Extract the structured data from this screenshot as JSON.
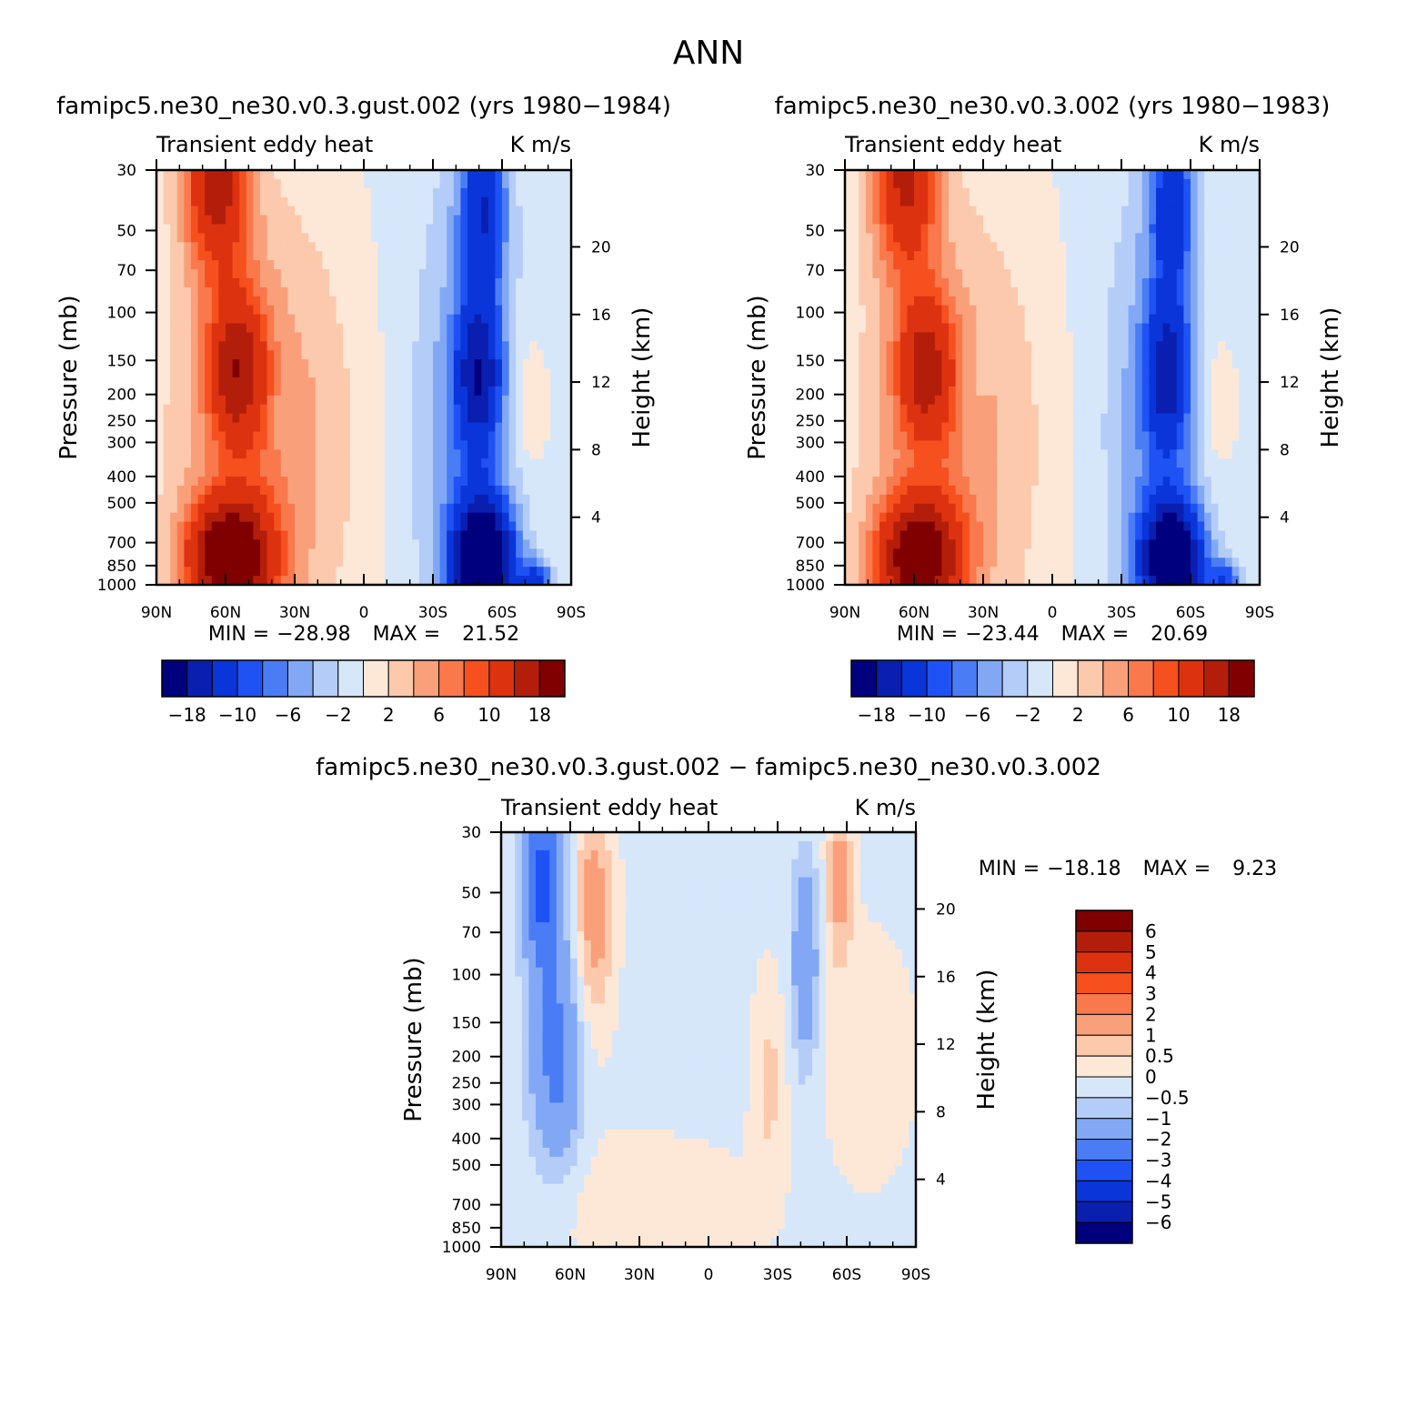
{
  "page_title": "ANN",
  "colors": {
    "diverging": [
      "#00007f",
      "#0a1fb0",
      "#0a35d9",
      "#1f52f5",
      "#4a7df5",
      "#82a8f5",
      "#b4ccf8",
      "#d7e7fa",
      "#fde8d8",
      "#fcc9ad",
      "#f9a07a",
      "#f9784c",
      "#f5501e",
      "#dd3210",
      "#b31e0a",
      "#800000"
    ]
  },
  "chart_data": [
    {
      "type": "heatmap",
      "title": "famipc5.ne30_ne30.v0.3.gust.002 (yrs 1980−1984)",
      "variable_label": "Transient eddy heat",
      "units_label": "K m/s",
      "xlabel": "",
      "ylabel": "Pressure (mb)",
      "ylabel_right": "Height (km)",
      "x_ticks": [
        "90N",
        "60N",
        "30N",
        "0",
        "30S",
        "60S",
        "90S"
      ],
      "y_ticks": [
        "30",
        "50",
        "70",
        "100",
        "150",
        "200",
        "250",
        "300",
        "400",
        "500",
        "700",
        "850",
        "1000"
      ],
      "y_right_ticks": [
        "20",
        "16",
        "12",
        "8",
        "4"
      ],
      "xlim": [
        90,
        -90
      ],
      "ylim": [
        1000,
        30
      ],
      "y_scale": "log",
      "stats": {
        "min_label": "MIN =",
        "min": "−28.98",
        "max_label": "MAX =",
        "max": "21.52"
      },
      "colorbar": {
        "orientation": "horizontal",
        "tick_labels": [
          "−18",
          "−10",
          "−6",
          "−2",
          "2",
          "6",
          "10",
          "18"
        ]
      }
    },
    {
      "type": "heatmap",
      "title": "famipc5.ne30_ne30.v0.3.002 (yrs 1980−1983)",
      "variable_label": "Transient eddy heat",
      "units_label": "K m/s",
      "xlabel": "",
      "ylabel": "Pressure (mb)",
      "ylabel_right": "Height (km)",
      "x_ticks": [
        "90N",
        "60N",
        "30N",
        "0",
        "30S",
        "60S",
        "90S"
      ],
      "y_ticks": [
        "30",
        "50",
        "70",
        "100",
        "150",
        "200",
        "250",
        "300",
        "400",
        "500",
        "700",
        "850",
        "1000"
      ],
      "y_right_ticks": [
        "20",
        "16",
        "12",
        "8",
        "4"
      ],
      "xlim": [
        90,
        -90
      ],
      "ylim": [
        1000,
        30
      ],
      "y_scale": "log",
      "stats": {
        "min_label": "MIN =",
        "min": "−23.44",
        "max_label": "MAX =",
        "max": "20.69"
      },
      "colorbar": {
        "orientation": "horizontal",
        "tick_labels": [
          "−18",
          "−10",
          "−6",
          "−2",
          "2",
          "6",
          "10",
          "18"
        ]
      }
    },
    {
      "type": "heatmap",
      "title": "famipc5.ne30_ne30.v0.3.gust.002 − famipc5.ne30_ne30.v0.3.002",
      "variable_label": "Transient eddy heat",
      "units_label": "K m/s",
      "xlabel": "",
      "ylabel": "Pressure (mb)",
      "ylabel_right": "Height (km)",
      "x_ticks": [
        "90N",
        "60N",
        "30N",
        "0",
        "30S",
        "60S",
        "90S"
      ],
      "y_ticks": [
        "30",
        "50",
        "70",
        "100",
        "150",
        "200",
        "250",
        "300",
        "400",
        "500",
        "700",
        "850",
        "1000"
      ],
      "y_right_ticks": [
        "20",
        "16",
        "12",
        "8",
        "4"
      ],
      "xlim": [
        90,
        -90
      ],
      "ylim": [
        1000,
        30
      ],
      "y_scale": "log",
      "stats": {
        "min_label": "MIN =",
        "min": "−18.18",
        "max_label": "MAX =",
        "max": "9.23"
      },
      "colorbar": {
        "orientation": "vertical",
        "tick_labels": [
          "6",
          "5",
          "4",
          "3",
          "2",
          "1",
          "0.5",
          "0",
          "−0.5",
          "−1",
          "−2",
          "−3",
          "−4",
          "−5",
          "−6"
        ]
      }
    }
  ]
}
